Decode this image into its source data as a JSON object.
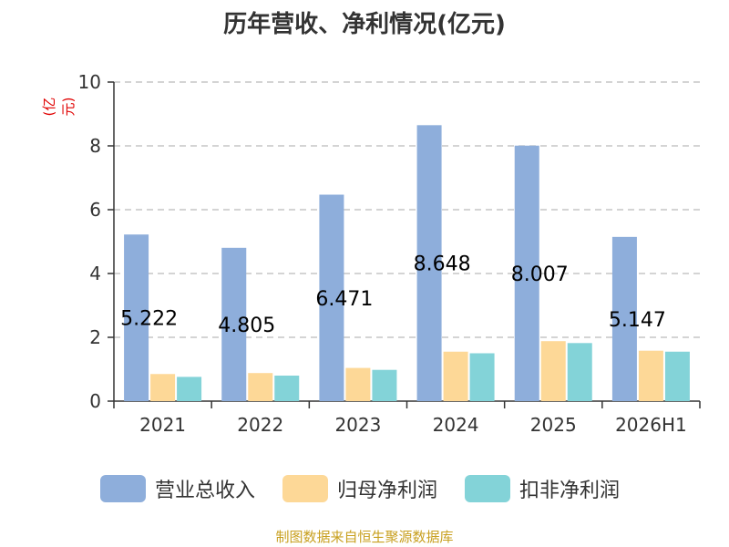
{
  "chart_data": {
    "type": "bar",
    "title": "历年营收、净利情况(亿元)",
    "ylabel": "(亿元)",
    "xlabel": "",
    "ylim": [
      0,
      10
    ],
    "yticks": [
      0,
      2,
      4,
      6,
      8,
      10
    ],
    "grid": true,
    "legend_position": "bottom",
    "categories": [
      "2021",
      "2022",
      "2023",
      "2024",
      "2025",
      "2026H1"
    ],
    "series": [
      {
        "name": "营业总收入",
        "color": "#8eaedb",
        "values": [
          5.222,
          4.805,
          6.471,
          8.648,
          8.007,
          5.147
        ],
        "data_labels": [
          "5.222",
          "4.805",
          "6.471",
          "8.648",
          "8.007",
          "5.147"
        ]
      },
      {
        "name": "归母净利润",
        "color": "#fdd897",
        "values": [
          0.85,
          0.88,
          1.04,
          1.55,
          1.88,
          1.58
        ]
      },
      {
        "name": "扣非净利润",
        "color": "#83d3d8",
        "values": [
          0.76,
          0.8,
          0.98,
          1.5,
          1.82,
          1.55
        ]
      }
    ],
    "source": "制图数据来自恒生聚源数据库"
  }
}
